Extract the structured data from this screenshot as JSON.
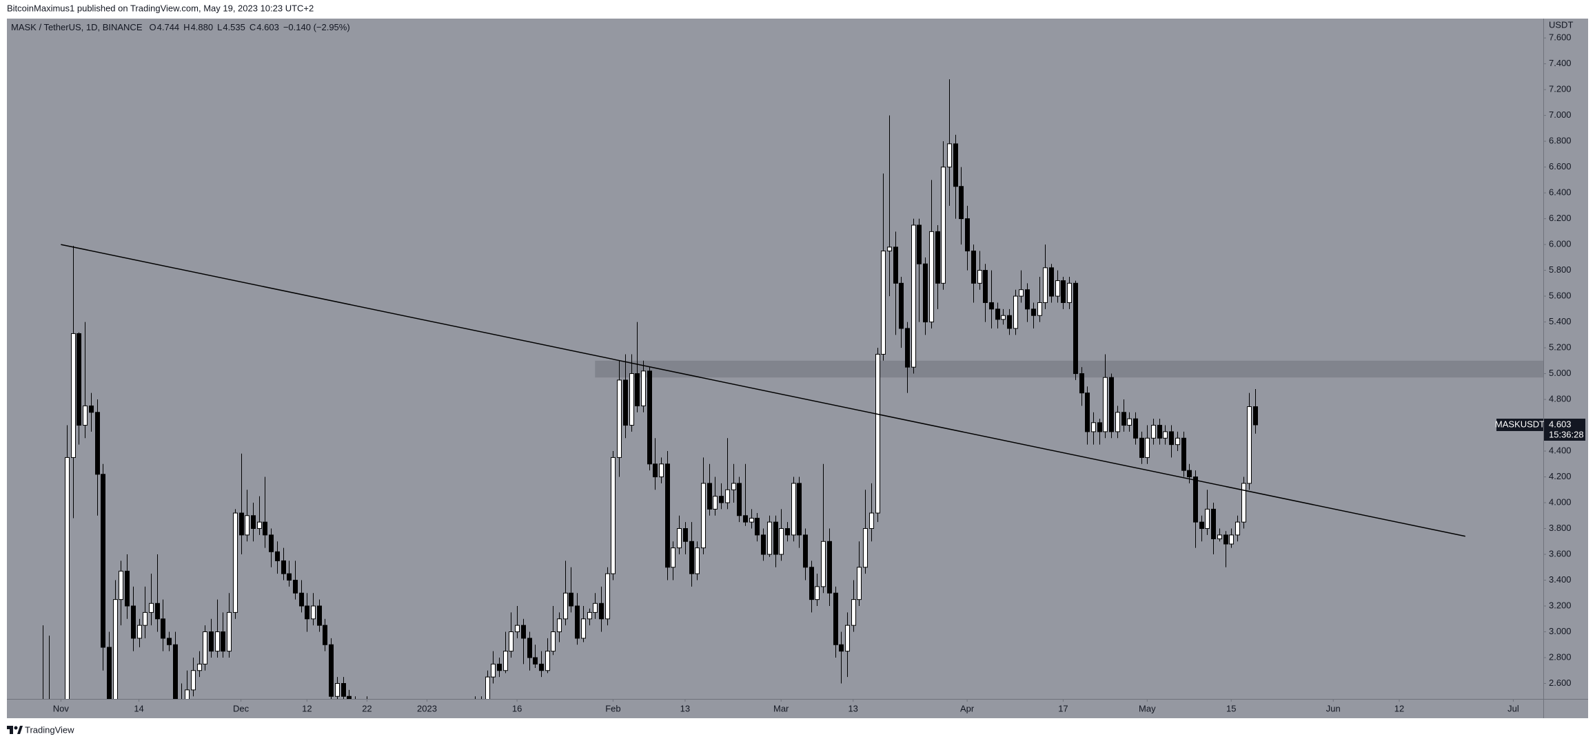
{
  "publisher_line": "BitcoinMaximus1 published on TradingView.com, May 19, 2023 10:23 UTC+2",
  "footer": "TradingView",
  "chart_data": {
    "type": "candlestick",
    "symbol": "MASK / TetherUS, 1D, BINANCE",
    "ohlc_legend": [
      {
        "label": "O",
        "value": "4.744"
      },
      {
        "label": "H",
        "value": "4.880"
      },
      {
        "label": "L",
        "value": "4.535"
      },
      {
        "label": "C",
        "value": "4.603"
      }
    ],
    "change": "−0.140 (−2.95%)",
    "currency": "USDT",
    "price_tag": {
      "symbol": "MASKUSDT",
      "price": "4.603",
      "countdown": "15:36:28"
    },
    "background": "#9598a1",
    "up_color": "#ffffff",
    "down_color": "#000000",
    "wick_color": "#000000",
    "xlim": [
      "2022-10-23",
      "2023-07-06"
    ],
    "ylim": [
      2.48,
      7.75
    ],
    "xticks": [
      {
        "value": "2022-11-01",
        "label": "Nov"
      },
      {
        "value": "2022-11-14",
        "label": "14"
      },
      {
        "value": "2022-12-01",
        "label": "Dec"
      },
      {
        "value": "2022-12-12",
        "label": "12"
      },
      {
        "value": "2022-12-22",
        "label": "22"
      },
      {
        "value": "2023-01-01",
        "label": "2023"
      },
      {
        "value": "2023-01-16",
        "label": "16"
      },
      {
        "value": "2023-02-01",
        "label": "Feb"
      },
      {
        "value": "2023-02-13",
        "label": "13"
      },
      {
        "value": "2023-03-01",
        "label": "Mar"
      },
      {
        "value": "2023-03-13",
        "label": "13"
      },
      {
        "value": "2023-04-01",
        "label": "Apr"
      },
      {
        "value": "2023-04-17",
        "label": "17"
      },
      {
        "value": "2023-05-01",
        "label": "May"
      },
      {
        "value": "2023-05-15",
        "label": "15"
      },
      {
        "value": "2023-06-01",
        "label": "Jun"
      },
      {
        "value": "2023-06-12",
        "label": "12"
      },
      {
        "value": "2023-07-01",
        "label": "Jul"
      }
    ],
    "yticks": [
      {
        "value": 2.6,
        "label": "2.600"
      },
      {
        "value": 2.8,
        "label": "2.800"
      },
      {
        "value": 3.0,
        "label": "3.000"
      },
      {
        "value": 3.2,
        "label": "3.200"
      },
      {
        "value": 3.4,
        "label": "3.400"
      },
      {
        "value": 3.6,
        "label": "3.600"
      },
      {
        "value": 3.8,
        "label": "3.800"
      },
      {
        "value": 4.0,
        "label": "4.000"
      },
      {
        "value": 4.2,
        "label": "4.200"
      },
      {
        "value": 4.4,
        "label": "4.400"
      },
      {
        "value": 4.6,
        "label": "4.600"
      },
      {
        "value": 4.8,
        "label": "4.800"
      },
      {
        "value": 5.0,
        "label": "5.000"
      },
      {
        "value": 5.2,
        "label": "5.200"
      },
      {
        "value": 5.4,
        "label": "5.400"
      },
      {
        "value": 5.6,
        "label": "5.600"
      },
      {
        "value": 5.8,
        "label": "5.800"
      },
      {
        "value": 6.0,
        "label": "6.000"
      },
      {
        "value": 6.2,
        "label": "6.200"
      },
      {
        "value": 6.4,
        "label": "6.400"
      },
      {
        "value": 6.6,
        "label": "6.600"
      },
      {
        "value": 6.8,
        "label": "6.800"
      },
      {
        "value": 7.0,
        "label": "7.000"
      },
      {
        "value": 7.2,
        "label": "7.200"
      },
      {
        "value": 7.4,
        "label": "7.400"
      },
      {
        "value": 7.6,
        "label": "7.600"
      }
    ],
    "trendline": {
      "x": [
        "2022-11-01",
        "2023-06-23"
      ],
      "values": [
        6.0,
        3.74
      ],
      "color": "#000000"
    },
    "zone": {
      "x_start": "2023-01-29",
      "ylim": [
        4.97,
        5.1
      ],
      "color": "#7b7e87"
    },
    "x": [
      "2022-10-29",
      "2022-10-30",
      "2022-10-31",
      "2022-11-01",
      "2022-11-02",
      "2022-11-03",
      "2022-11-04",
      "2022-11-05",
      "2022-11-06",
      "2022-11-07",
      "2022-11-08",
      "2022-11-09",
      "2022-11-10",
      "2022-11-11",
      "2022-11-12",
      "2022-11-13",
      "2022-11-14",
      "2022-11-15",
      "2022-11-16",
      "2022-11-17",
      "2022-11-18",
      "2022-11-19",
      "2022-11-20",
      "2022-11-21",
      "2022-11-22",
      "2022-11-23",
      "2022-11-24",
      "2022-11-25",
      "2022-11-26",
      "2022-11-27",
      "2022-11-28",
      "2022-11-29",
      "2022-11-30",
      "2022-12-01",
      "2022-12-02",
      "2022-12-03",
      "2022-12-04",
      "2022-12-05",
      "2022-12-06",
      "2022-12-07",
      "2022-12-08",
      "2022-12-09",
      "2022-12-10",
      "2022-12-11",
      "2022-12-12",
      "2022-12-13",
      "2022-12-14",
      "2022-12-15",
      "2022-12-16",
      "2022-12-17",
      "2022-12-18",
      "2022-12-19",
      "2022-12-20",
      "2022-12-21",
      "2022-12-22",
      "2022-12-23",
      "2022-12-24",
      "2022-12-25",
      "2022-12-26",
      "2022-12-27",
      "2022-12-28",
      "2022-12-29",
      "2022-12-30",
      "2022-12-31",
      "2023-01-01",
      "2023-01-02",
      "2023-01-03",
      "2023-01-04",
      "2023-01-05",
      "2023-01-06",
      "2023-01-07",
      "2023-01-08",
      "2023-01-09",
      "2023-01-10",
      "2023-01-11",
      "2023-01-12",
      "2023-01-13",
      "2023-01-14",
      "2023-01-15",
      "2023-01-16",
      "2023-01-17",
      "2023-01-18",
      "2023-01-19",
      "2023-01-20",
      "2023-01-21",
      "2023-01-22",
      "2023-01-23",
      "2023-01-24",
      "2023-01-25",
      "2023-01-26",
      "2023-01-27",
      "2023-01-28",
      "2023-01-29",
      "2023-01-30",
      "2023-01-31",
      "2023-02-01",
      "2023-02-02",
      "2023-02-03",
      "2023-02-04",
      "2023-02-05",
      "2023-02-06",
      "2023-02-07",
      "2023-02-08",
      "2023-02-09",
      "2023-02-10",
      "2023-02-11",
      "2023-02-12",
      "2023-02-13",
      "2023-02-14",
      "2023-02-15",
      "2023-02-16",
      "2023-02-17",
      "2023-02-18",
      "2023-02-19",
      "2023-02-20",
      "2023-02-21",
      "2023-02-22",
      "2023-02-23",
      "2023-02-24",
      "2023-02-25",
      "2023-02-26",
      "2023-02-27",
      "2023-02-28",
      "2023-03-01",
      "2023-03-02",
      "2023-03-03",
      "2023-03-04",
      "2023-03-05",
      "2023-03-06",
      "2023-03-07",
      "2023-03-08",
      "2023-03-09",
      "2023-03-10",
      "2023-03-11",
      "2023-03-12",
      "2023-03-13",
      "2023-03-14",
      "2023-03-15",
      "2023-03-16",
      "2023-03-17",
      "2023-03-18",
      "2023-03-19",
      "2023-03-20",
      "2023-03-21",
      "2023-03-22",
      "2023-03-23",
      "2023-03-24",
      "2023-03-25",
      "2023-03-26",
      "2023-03-27",
      "2023-03-28",
      "2023-03-29",
      "2023-03-30",
      "2023-03-31",
      "2023-04-01",
      "2023-04-02",
      "2023-04-03",
      "2023-04-04",
      "2023-04-05",
      "2023-04-06",
      "2023-04-07",
      "2023-04-08",
      "2023-04-09",
      "2023-04-10",
      "2023-04-11",
      "2023-04-12",
      "2023-04-13",
      "2023-04-14",
      "2023-04-15",
      "2023-04-16",
      "2023-04-17",
      "2023-04-18",
      "2023-04-19",
      "2023-04-20",
      "2023-04-21",
      "2023-04-22",
      "2023-04-23",
      "2023-04-24",
      "2023-04-25",
      "2023-04-26",
      "2023-04-27",
      "2023-04-28",
      "2023-04-29",
      "2023-04-30",
      "2023-05-01",
      "2023-05-02",
      "2023-05-03",
      "2023-05-04",
      "2023-05-05",
      "2023-05-06",
      "2023-05-07",
      "2023-05-08",
      "2023-05-09",
      "2023-05-10",
      "2023-05-11",
      "2023-05-12",
      "2023-05-13",
      "2023-05-14",
      "2023-05-15",
      "2023-05-16",
      "2023-05-17",
      "2023-05-18",
      "2023-05-19"
    ],
    "open": [
      2.2,
      2.25,
      2.2,
      2.3,
      2.4,
      4.35,
      5.31,
      4.6,
      4.75,
      4.7,
      4.22,
      2.88,
      2.35,
      3.25,
      3.47,
      3.2,
      2.95,
      3.05,
      3.15,
      3.22,
      3.1,
      2.95,
      2.9,
      2.47,
      2.35,
      2.55,
      2.7,
      2.75,
      3.0,
      2.85,
      3.0,
      2.85,
      3.15,
      3.92,
      3.75,
      3.9,
      3.8,
      3.85,
      3.75,
      3.62,
      3.55,
      3.45,
      3.4,
      3.3,
      3.2,
      3.1,
      3.2,
      3.05,
      2.9,
      2.5,
      2.6,
      2.5,
      2.35,
      2.4,
      2.38,
      2.33,
      2.36,
      2.34,
      2.32,
      2.35,
      2.3,
      2.22,
      2.25,
      2.2,
      2.22,
      2.25,
      2.3,
      2.28,
      2.38,
      2.35,
      2.4,
      2.38,
      2.42,
      2.45,
      2.4,
      2.65,
      2.75,
      2.7,
      2.85,
      3.0,
      3.05,
      2.95,
      2.8,
      2.75,
      2.7,
      2.85,
      3.0,
      3.1,
      3.3,
      3.2,
      2.95,
      3.1,
      3.15,
      3.22,
      3.1,
      3.45,
      4.35,
      4.95,
      4.6,
      5.0,
      4.75,
      5.02,
      4.3,
      4.2,
      4.3,
      3.5,
      3.65,
      3.8,
      3.7,
      3.45,
      3.65,
      4.15,
      3.95,
      4.05,
      4.0,
      4.1,
      4.15,
      3.9,
      3.85,
      3.88,
      3.75,
      3.6,
      3.85,
      3.6,
      3.8,
      3.75,
      4.15,
      3.75,
      3.5,
      3.25,
      3.35,
      3.7,
      3.3,
      2.9,
      2.85,
      3.05,
      3.25,
      3.5,
      3.8,
      3.92,
      5.15,
      5.95,
      5.98,
      5.7,
      5.35,
      5.05,
      6.15,
      5.85,
      5.4,
      6.1,
      5.7,
      6.6,
      6.78,
      6.45,
      6.2,
      5.95,
      5.7,
      5.8,
      5.55,
      5.5,
      5.42,
      5.45,
      5.35,
      5.6,
      5.65,
      5.5,
      5.45,
      5.55,
      5.82,
      5.6,
      5.72,
      5.55,
      5.7,
      5.0,
      4.85,
      4.55,
      4.62,
      4.55,
      4.97,
      4.55,
      4.7,
      4.6,
      4.65,
      4.5,
      4.35,
      4.5,
      4.6,
      4.5,
      4.55,
      4.45,
      4.5,
      4.25,
      4.2,
      3.85,
      3.8,
      3.95,
      3.72,
      3.75,
      3.68,
      3.75,
      3.85,
      4.15,
      4.744
    ],
    "high": [
      3.05,
      2.97,
      2.4,
      2.45,
      4.6,
      5.99,
      5.32,
      5.4,
      4.85,
      4.8,
      4.3,
      3.0,
      3.4,
      3.55,
      3.6,
      3.35,
      3.1,
      3.35,
      3.45,
      3.6,
      3.25,
      3.0,
      3.0,
      2.6,
      2.7,
      2.8,
      2.85,
      3.05,
      3.1,
      3.25,
      3.15,
      3.3,
      3.95,
      4.38,
      4.1,
      4.0,
      4.05,
      4.2,
      3.8,
      3.7,
      3.65,
      3.55,
      3.55,
      3.4,
      3.3,
      3.3,
      3.25,
      3.1,
      2.95,
      2.65,
      2.65,
      2.55,
      2.5,
      2.45,
      2.5,
      2.4,
      2.4,
      2.38,
      2.4,
      2.38,
      2.32,
      2.3,
      2.28,
      2.25,
      2.28,
      2.33,
      2.32,
      2.42,
      2.4,
      2.43,
      2.42,
      2.45,
      2.5,
      2.5,
      2.7,
      2.85,
      2.8,
      3.0,
      3.15,
      3.2,
      3.1,
      3.0,
      2.9,
      2.85,
      2.95,
      3.2,
      3.15,
      3.55,
      3.5,
      3.3,
      3.2,
      3.18,
      3.3,
      3.35,
      3.5,
      4.4,
      5.1,
      5.15,
      5.15,
      5.4,
      5.1,
      5.05,
      4.5,
      4.35,
      4.4,
      3.7,
      3.9,
      3.85,
      3.85,
      3.7,
      4.35,
      4.3,
      4.2,
      4.15,
      4.5,
      4.3,
      4.2,
      4.3,
      3.95,
      3.92,
      3.8,
      3.9,
      3.9,
      3.95,
      3.85,
      4.2,
      4.2,
      3.8,
      3.55,
      3.45,
      4.3,
      3.8,
      3.35,
      3.0,
      3.15,
      3.4,
      3.7,
      4.1,
      4.15,
      5.2,
      6.55,
      7.0,
      6.1,
      5.75,
      5.4,
      6.2,
      6.2,
      5.9,
      6.5,
      6.15,
      6.8,
      7.28,
      6.85,
      6.6,
      6.3,
      6.0,
      5.95,
      5.85,
      5.8,
      5.55,
      5.5,
      5.5,
      5.65,
      5.8,
      5.7,
      5.55,
      5.75,
      6.0,
      5.85,
      5.8,
      5.75,
      5.75,
      5.72,
      5.05,
      4.9,
      4.7,
      4.65,
      5.15,
      5.0,
      4.75,
      4.8,
      4.7,
      4.7,
      4.55,
      4.6,
      4.65,
      4.65,
      4.6,
      4.6,
      4.55,
      4.55,
      4.3,
      4.25,
      3.9,
      4.1,
      4.0,
      3.8,
      3.78,
      3.8,
      3.9,
      4.2,
      4.85,
      4.88
    ],
    "low": [
      2.1,
      2.1,
      2.1,
      2.2,
      2.35,
      3.88,
      4.45,
      4.5,
      4.55,
      3.9,
      2.7,
      2.2,
      2.3,
      3.05,
      3.1,
      2.85,
      2.88,
      2.95,
      3.05,
      3.0,
      2.85,
      2.85,
      2.3,
      2.2,
      2.3,
      2.5,
      2.65,
      2.7,
      2.8,
      2.8,
      2.8,
      2.8,
      3.1,
      3.6,
      3.7,
      3.7,
      3.75,
      3.65,
      3.5,
      3.45,
      3.4,
      3.35,
      3.25,
      3.15,
      3.0,
      3.05,
      3.0,
      2.85,
      2.4,
      2.45,
      2.4,
      2.3,
      2.3,
      2.33,
      2.3,
      2.3,
      2.3,
      2.28,
      2.3,
      2.25,
      2.18,
      2.18,
      2.15,
      2.17,
      2.2,
      2.22,
      2.24,
      2.26,
      2.3,
      2.3,
      2.35,
      2.36,
      2.38,
      2.35,
      2.38,
      2.6,
      2.65,
      2.68,
      2.8,
      2.95,
      2.75,
      2.7,
      2.72,
      2.65,
      2.68,
      2.82,
      2.92,
      3.05,
      3.15,
      2.9,
      2.92,
      3.05,
      3.1,
      3.0,
      3.05,
      3.4,
      4.2,
      4.5,
      4.55,
      4.7,
      4.7,
      4.25,
      4.1,
      4.15,
      3.4,
      3.4,
      3.6,
      3.6,
      3.35,
      3.4,
      3.6,
      3.9,
      3.9,
      3.95,
      3.95,
      4.0,
      3.85,
      3.82,
      3.8,
      3.7,
      3.55,
      3.58,
      3.5,
      3.55,
      3.7,
      3.7,
      3.65,
      3.4,
      3.15,
      3.2,
      3.3,
      3.2,
      2.8,
      2.6,
      2.65,
      3.0,
      3.2,
      3.45,
      3.7,
      3.85,
      5.1,
      5.6,
      5.3,
      5.2,
      4.85,
      5.0,
      5.4,
      5.3,
      5.35,
      5.5,
      5.65,
      6.3,
      6.2,
      6.0,
      5.8,
      5.55,
      5.65,
      5.4,
      5.35,
      5.35,
      5.38,
      5.3,
      5.3,
      5.55,
      5.4,
      5.35,
      5.4,
      5.5,
      5.55,
      5.55,
      5.5,
      5.5,
      4.95,
      4.75,
      4.45,
      4.45,
      4.45,
      4.5,
      4.5,
      4.5,
      4.55,
      4.55,
      4.45,
      4.3,
      4.3,
      4.45,
      4.45,
      4.45,
      4.35,
      4.4,
      4.2,
      4.15,
      3.65,
      3.7,
      3.75,
      3.6,
      3.7,
      3.5,
      3.65,
      3.7,
      3.8,
      4.1,
      4.535
    ],
    "close": [
      2.25,
      2.2,
      2.3,
      2.4,
      4.35,
      5.31,
      4.6,
      4.75,
      4.7,
      4.22,
      2.88,
      2.35,
      3.25,
      3.47,
      3.2,
      2.95,
      3.05,
      3.15,
      3.22,
      3.1,
      2.95,
      2.9,
      2.47,
      2.35,
      2.55,
      2.7,
      2.75,
      3.0,
      2.85,
      3.0,
      2.85,
      3.15,
      3.92,
      3.75,
      3.9,
      3.8,
      3.85,
      3.75,
      3.62,
      3.55,
      3.45,
      3.4,
      3.3,
      3.2,
      3.1,
      3.2,
      3.05,
      2.9,
      2.5,
      2.6,
      2.5,
      2.35,
      2.4,
      2.38,
      2.33,
      2.36,
      2.34,
      2.32,
      2.35,
      2.3,
      2.22,
      2.25,
      2.2,
      2.22,
      2.25,
      2.3,
      2.28,
      2.38,
      2.35,
      2.4,
      2.38,
      2.42,
      2.45,
      2.4,
      2.65,
      2.75,
      2.7,
      2.85,
      3.0,
      3.05,
      2.95,
      2.8,
      2.75,
      2.7,
      2.85,
      3.0,
      3.1,
      3.3,
      3.2,
      2.95,
      3.1,
      3.15,
      3.22,
      3.1,
      3.45,
      4.35,
      4.95,
      4.6,
      5.0,
      4.75,
      5.02,
      4.3,
      4.2,
      4.3,
      3.5,
      3.65,
      3.8,
      3.7,
      3.45,
      3.65,
      4.15,
      3.95,
      4.05,
      4.0,
      4.1,
      4.15,
      3.9,
      3.85,
      3.88,
      3.75,
      3.6,
      3.85,
      3.6,
      3.8,
      3.75,
      4.15,
      3.75,
      3.5,
      3.25,
      3.35,
      3.7,
      3.3,
      2.9,
      2.85,
      3.05,
      3.25,
      3.5,
      3.8,
      3.92,
      5.15,
      5.95,
      5.98,
      5.7,
      5.35,
      5.05,
      6.15,
      5.85,
      5.4,
      6.1,
      5.7,
      6.6,
      6.78,
      6.45,
      6.2,
      5.95,
      5.7,
      5.8,
      5.55,
      5.5,
      5.42,
      5.45,
      5.35,
      5.6,
      5.65,
      5.5,
      5.45,
      5.55,
      5.82,
      5.6,
      5.72,
      5.55,
      5.7,
      5.0,
      4.85,
      4.55,
      4.62,
      4.55,
      4.97,
      4.55,
      4.7,
      4.6,
      4.65,
      4.5,
      4.35,
      4.5,
      4.6,
      4.5,
      4.55,
      4.45,
      4.5,
      4.25,
      4.2,
      3.85,
      3.8,
      3.95,
      3.72,
      3.75,
      3.68,
      3.75,
      3.85,
      4.15,
      4.744,
      4.603
    ]
  }
}
